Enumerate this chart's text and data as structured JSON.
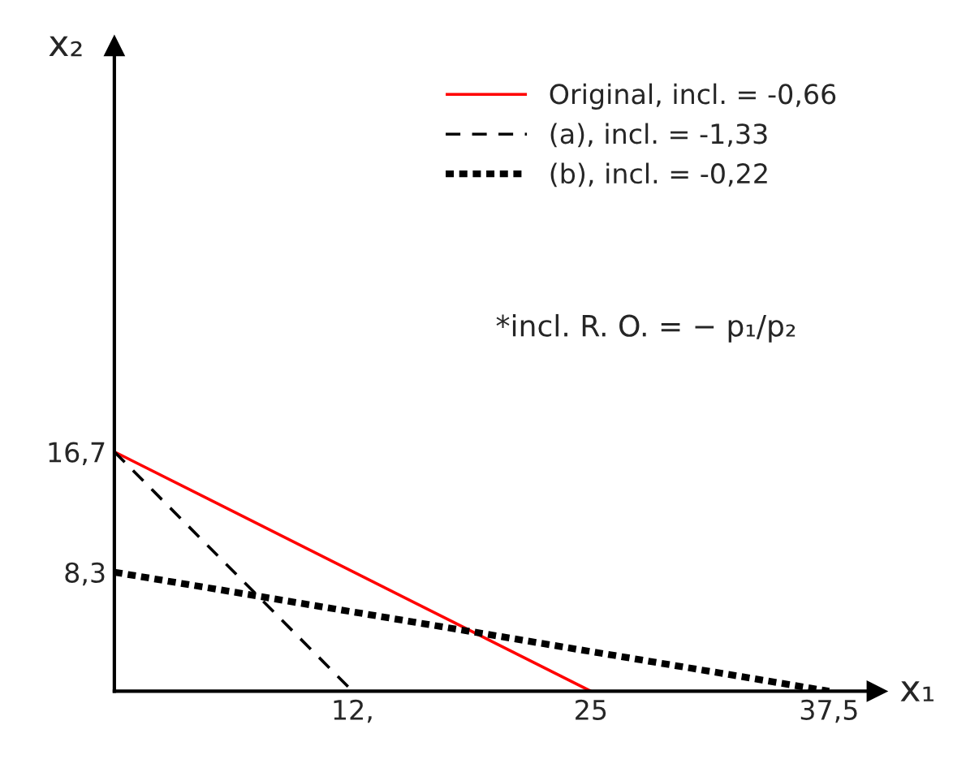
{
  "chart_data": {
    "type": "line",
    "xlabel": "x₁",
    "ylabel": "x₂",
    "series": [
      {
        "name": "Original, incl. = -0,66",
        "color": "#ff0000",
        "line_style": "solid",
        "x": [
          0,
          25
        ],
        "values": [
          16.7,
          0
        ]
      },
      {
        "name": "(a), incl. = -1,33",
        "color": "#000000",
        "line_style": "dashed",
        "x": [
          0,
          12.5
        ],
        "values": [
          16.7,
          0
        ]
      },
      {
        "name": "(b), incl. = -0,22",
        "color": "#000000",
        "line_style": "dotted",
        "x": [
          0,
          37.5
        ],
        "values": [
          8.3,
          0
        ]
      }
    ],
    "xlim": [
      0,
      40
    ],
    "ylim": [
      0,
      45
    ],
    "xticks": [
      {
        "value": 12.5,
        "label": "12,"
      },
      25,
      {
        "value": 37.5,
        "label": "37,5"
      }
    ],
    "yticks": [
      {
        "value": 8.3,
        "label": "8,3"
      },
      {
        "value": 16.7,
        "label": "16,7"
      }
    ],
    "annotations": [
      "*incl. R. O. = − p₁/p₂"
    ],
    "legend": "top right",
    "grid": false,
    "marker": "none"
  }
}
